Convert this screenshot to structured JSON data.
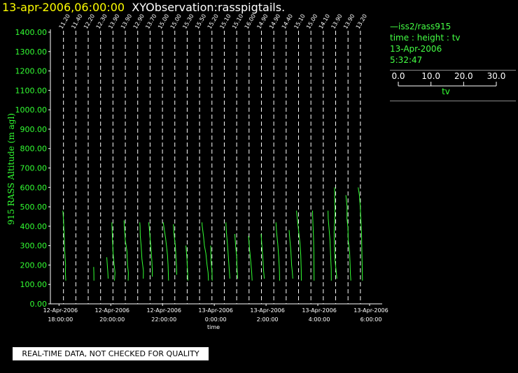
{
  "header": {
    "time": "13-apr-2006,06:00:00",
    "name": "XYObservation:rasspigtails."
  },
  "legend": {
    "series": "iss2/rass915",
    "desc": "time : height : tv",
    "date": "13-Apr-2006",
    "time": "5:32:47",
    "scale_ticks": [
      "0.0",
      "10.0",
      "20.0",
      "30.0"
    ],
    "scale_label": "tv"
  },
  "banner": "REAL-TIME DATA, NOT CHECKED FOR QUALITY",
  "colors": {
    "data": "#33ff33",
    "axis": "#ffffff",
    "background": "#000000"
  },
  "chart_data": {
    "type": "line",
    "xlabel": "time",
    "ylabel": "915 RASS Altitude (m agl)",
    "ylim": [
      0,
      1400
    ],
    "yticks": [
      "0.00",
      "100.00",
      "200.00",
      "300.00",
      "400.00",
      "500.00",
      "600.00",
      "700.00",
      "800.00",
      "900.00",
      "1000.00",
      "1100.00",
      "1200.00",
      "1300.00",
      "1400.00"
    ],
    "xlim": [
      "12-Apr-2006 17:40",
      "13-Apr-2006 06:00"
    ],
    "xticks": [
      {
        "date": "12-Apr-2006",
        "time": "18:00:00"
      },
      {
        "date": "12-Apr-2006",
        "time": "20:00:00"
      },
      {
        "date": "12-Apr-2006",
        "time": "22:00:00"
      },
      {
        "date": "13-Apr-2006",
        "time": "0:00:00"
      },
      {
        "date": "13-Apr-2006",
        "time": "2:00:00"
      },
      {
        "date": "13-Apr-2006",
        "time": "4:00:00"
      },
      {
        "date": "13-Apr-2006",
        "time": "6:00:00"
      }
    ],
    "scale": {
      "tv_min": 0,
      "tv_max": 30
    },
    "profiles": [
      {
        "label": "11.20",
        "points": [
          [
            120,
            13.4
          ],
          [
            160,
            12.3
          ],
          [
            200,
            12.9
          ],
          [
            280,
            10.3
          ],
          [
            360,
            9.1
          ],
          [
            440,
            7.1
          ],
          [
            480,
            5.8
          ]
        ]
      },
      {
        "label": "11.40",
        "points": []
      },
      {
        "label": "12.20",
        "points": [
          [
            120,
            22.3
          ],
          [
            160,
            22.0
          ],
          [
            190,
            21.5
          ]
        ]
      },
      {
        "label": "12.30",
        "points": [
          [
            130,
            27.0
          ],
          [
            160,
            26.4
          ],
          [
            240,
            23.4
          ]
        ]
      },
      {
        "label": "13.90",
        "points": [
          [
            120,
            11.2
          ],
          [
            160,
            12.6
          ],
          [
            200,
            10.4
          ],
          [
            260,
            7.8
          ],
          [
            320,
            6.3
          ],
          [
            380,
            5.1
          ],
          [
            420,
            4.5
          ]
        ]
      },
      {
        "label": "13.90",
        "points": [
          [
            120,
            14.7
          ],
          [
            160,
            15.2
          ],
          [
            200,
            13.0
          ],
          [
            270,
            11.6
          ],
          [
            330,
            7.0
          ],
          [
            400,
            4.6
          ],
          [
            430,
            4.0
          ]
        ]
      },
      {
        "label": "12.90",
        "points": [
          [
            130,
            21.9
          ],
          [
            170,
            22.2
          ],
          [
            230,
            18.4
          ],
          [
            300,
            16.2
          ],
          [
            350,
            14.1
          ],
          [
            400,
            13.4
          ],
          [
            420,
            12.8
          ]
        ]
      },
      {
        "label": "13.70",
        "points": [
          [
            140,
            13.2
          ],
          [
            180,
            13.0
          ],
          [
            230,
            11.7
          ],
          [
            290,
            9.6
          ],
          [
            350,
            7.0
          ],
          [
            400,
            4.7
          ],
          [
            420,
            3.9
          ]
        ]
      },
      {
        "label": "15.00",
        "points": [
          [
            120,
            23.3
          ],
          [
            200,
            22.0
          ],
          [
            250,
            20.5
          ],
          [
            300,
            17.8
          ],
          [
            340,
            15.4
          ],
          [
            380,
            12.3
          ],
          [
            420,
            9.3
          ]
        ]
      },
      {
        "label": "15.00",
        "points": [
          [
            150,
            12.3
          ],
          [
            200,
            11.6
          ],
          [
            230,
            10.6
          ],
          [
            300,
            8.6
          ],
          [
            360,
            5.0
          ],
          [
            410,
            3.5
          ]
        ]
      },
      {
        "label": "15.30",
        "points": [
          [
            120,
            9.1
          ],
          [
            170,
            8.3
          ],
          [
            230,
            6.7
          ],
          [
            300,
            4.0
          ]
        ]
      },
      {
        "label": "15.50",
        "points": [
          [
            120,
            30.6
          ],
          [
            160,
            29.6
          ],
          [
            200,
            26.8
          ],
          [
            260,
            23.7
          ],
          [
            300,
            20.0
          ],
          [
            350,
            17.6
          ],
          [
            400,
            14.2
          ],
          [
            420,
            13.6
          ]
        ]
      },
      {
        "label": "15.20",
        "points": [
          [
            120,
            8.0
          ],
          [
            160,
            7.6
          ],
          [
            220,
            5.0
          ],
          [
            300,
            4.0
          ]
        ]
      },
      {
        "label": "15.10",
        "points": [
          [
            130,
            21.8
          ],
          [
            180,
            20.0
          ],
          [
            240,
            18.1
          ],
          [
            310,
            15.5
          ],
          [
            370,
            12.7
          ],
          [
            420,
            11.4
          ]
        ]
      },
      {
        "label": "15.10",
        "points": [
          [
            130,
            10.0
          ],
          [
            170,
            8.6
          ],
          [
            240,
            7.2
          ],
          [
            300,
            4.6
          ],
          [
            340,
            3.0
          ],
          [
            360,
            2.4
          ]
        ]
      },
      {
        "label": "16.00",
        "points": [
          [
            120,
            15.4
          ],
          [
            160,
            14.3
          ],
          [
            220,
            11.7
          ],
          [
            280,
            8.7
          ],
          [
            350,
            5.9
          ]
        ]
      },
      {
        "label": "14.90",
        "points": [
          [
            130,
            14.8
          ],
          [
            170,
            13.0
          ],
          [
            240,
            10.9
          ],
          [
            300,
            8.5
          ],
          [
            360,
            6.5
          ]
        ]
      },
      {
        "label": "14.90",
        "points": [
          [
            120,
            22.5
          ],
          [
            180,
            21.9
          ],
          [
            240,
            20.2
          ],
          [
            310,
            17.7
          ],
          [
            370,
            14.6
          ],
          [
            420,
            12.9
          ]
        ]
      },
      {
        "label": "14.40",
        "points": [
          [
            130,
            24.6
          ],
          [
            160,
            23.6
          ],
          [
            200,
            21.6
          ],
          [
            280,
            19.3
          ],
          [
            330,
            17.0
          ],
          [
            380,
            15.0
          ]
        ]
      },
      {
        "label": "15.10",
        "points": [
          [
            120,
            14.7
          ],
          [
            180,
            14.3
          ],
          [
            250,
            13.1
          ],
          [
            310,
            11.2
          ],
          [
            380,
            7.4
          ],
          [
            440,
            4.0
          ],
          [
            480,
            2.0
          ]
        ]
      },
      {
        "label": "15.00",
        "points": [
          [
            120,
            15.6
          ],
          [
            200,
            15.3
          ],
          [
            260,
            15.0
          ],
          [
            340,
            14.2
          ],
          [
            400,
            12.8
          ],
          [
            470,
            11.6
          ],
          [
            480,
            11.6
          ]
        ]
      },
      {
        "label": "14.10",
        "points": [
          [
            120,
            28.3
          ],
          [
            180,
            28.0
          ],
          [
            250,
            26.5
          ],
          [
            330,
            24.7
          ],
          [
            400,
            21.8
          ],
          [
            440,
            20.2
          ],
          [
            480,
            19.7
          ]
        ]
      },
      {
        "label": "13.90",
        "points": [
          [
            130,
            10.5
          ],
          [
            170,
            8.6
          ],
          [
            230,
            5.3
          ],
          [
            310,
            4.0
          ],
          [
            370,
            3.5
          ],
          [
            410,
            4.4
          ],
          [
            470,
            5.6
          ],
          [
            520,
            4.9
          ],
          [
            600,
            4.6
          ]
        ]
      },
      {
        "label": "13.90",
        "points": [
          [
            120,
            14.6
          ],
          [
            160,
            13.4
          ],
          [
            200,
            12.9
          ],
          [
            270,
            11.4
          ],
          [
            330,
            7.7
          ],
          [
            390,
            7.1
          ],
          [
            440,
            4.6
          ],
          [
            500,
            4.9
          ],
          [
            560,
            1.6
          ]
        ]
      },
      {
        "label": "13.20",
        "points": [
          [
            120,
            12.6
          ],
          [
            200,
            11.9
          ],
          [
            280,
            11.0
          ],
          [
            360,
            10.3
          ],
          [
            430,
            8.7
          ],
          [
            500,
            7.1
          ],
          [
            560,
            4.7
          ],
          [
            600,
            1.5
          ]
        ]
      }
    ]
  }
}
